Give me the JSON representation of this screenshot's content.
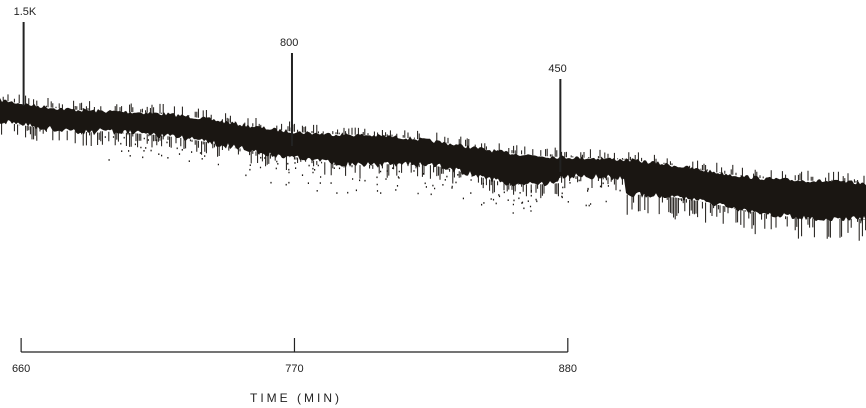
{
  "chart_data": {
    "type": "area",
    "title": "",
    "ylabel": "",
    "xlabel": "TIME (MIN)",
    "grid": false,
    "legend": "none",
    "colors": {
      "trace": "#1a1612",
      "axis": "#222222",
      "background": "#ffffff"
    },
    "x_ticks": [
      {
        "value": 660,
        "label": "660"
      },
      {
        "value": 770,
        "label": "770"
      },
      {
        "value": 880,
        "label": "880"
      }
    ],
    "markers": [
      {
        "label": "1.5K",
        "x": 661
      },
      {
        "label": "800",
        "x": 769
      },
      {
        "label": "450",
        "x": 877
      }
    ],
    "xlim": [
      651.5,
      1000
    ]
  }
}
